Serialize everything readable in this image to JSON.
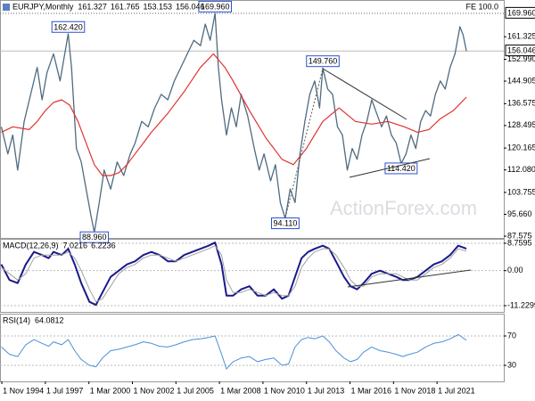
{
  "chart_data": [
    {
      "type": "line",
      "title": "EURJPY,Monthly",
      "ohlc": [
        161.327,
        161.765,
        153.153,
        156.046
      ],
      "xlim": [
        1994.72,
        2025.59
      ],
      "ylim": [
        86.93,
        174.9
      ],
      "yticks": [
        161.325,
        {
          "value": 152.99,
          "label": "152.990"
        },
        144.905,
        136.575,
        128.495,
        120.165,
        {
          "value": 112.08,
          "label": "112.080"
        },
        103.755,
        {
          "value": 95.66,
          "label": "95.660"
        },
        87.575
      ],
      "last_price": 156.046,
      "fe_label": "FE 100.0",
      "fe_level": {
        "value": 169.96,
        "label": "169.960"
      },
      "watermark": "ActionForex.com",
      "annotations": [
        {
          "x": 1998.9,
          "value": 162.42,
          "label": "162.420"
        },
        {
          "x": 2000.5,
          "value": 88.96,
          "label": "88.960"
        },
        {
          "x": 2007.9,
          "value": 169.96,
          "label": "169.960"
        },
        {
          "x": 2012.2,
          "value": 94.11,
          "label": "94.110"
        },
        {
          "x": 2014.5,
          "value": 149.76,
          "label": "149.760"
        },
        {
          "x": 2019.3,
          "value": 114.42,
          "label": "114.420"
        }
      ],
      "series": [
        {
          "color": "#4f6b80",
          "x": [
            1994.8,
            1995.2,
            1995.5,
            1995.8,
            1996.2,
            1996.6,
            1997.0,
            1997.3,
            1997.6,
            1998.0,
            1998.4,
            1998.9,
            1999.1,
            1999.4,
            1999.7,
            2000.0,
            2000.3,
            2000.5,
            2000.8,
            2001.1,
            2001.5,
            2001.9,
            2002.3,
            2002.7,
            2003.0,
            2003.4,
            2003.8,
            2004.2,
            2004.6,
            2005.0,
            2005.4,
            2005.8,
            2006.2,
            2006.6,
            2007.0,
            2007.3,
            2007.6,
            2007.9,
            2008.1,
            2008.3,
            2008.6,
            2008.9,
            2009.2,
            2009.5,
            2009.9,
            2010.3,
            2010.6,
            2010.9,
            2011.3,
            2011.6,
            2011.9,
            2012.2,
            2012.5,
            2012.8,
            2013.1,
            2013.4,
            2013.7,
            2014.0,
            2014.3,
            2014.5,
            2014.8,
            2015.1,
            2015.4,
            2015.7,
            2016.0,
            2016.3,
            2016.6,
            2016.9,
            2017.2,
            2017.5,
            2017.8,
            2018.1,
            2018.4,
            2018.7,
            2019.0,
            2019.3,
            2019.6,
            2019.9,
            2020.2,
            2020.5,
            2020.8,
            2021.1,
            2021.4,
            2021.7,
            2022.0,
            2022.3,
            2022.6,
            2022.9,
            2023.1,
            2023.3
          ],
          "values": [
            128,
            118,
            125,
            112,
            130,
            140,
            150,
            138,
            148,
            155,
            145,
            162.42,
            150,
            120,
            115,
            105,
            95,
            88.96,
            100,
            112,
            105,
            115,
            110,
            118,
            122,
            130,
            128,
            135,
            140,
            138,
            145,
            150,
            155,
            160,
            158,
            166,
            160,
            169.96,
            150,
            138,
            125,
            135,
            128,
            140,
            132,
            120,
            112,
            118,
            108,
            114,
            100,
            94.11,
            105,
            100,
            118,
            130,
            140,
            145,
            135,
            149.76,
            142,
            140,
            128,
            125,
            112,
            120,
            116,
            125,
            130,
            138,
            133,
            128,
            132,
            125,
            122,
            114.42,
            118,
            125,
            120,
            130,
            134,
            132,
            140,
            145,
            142,
            150,
            155,
            165,
            162,
            156
          ]
        },
        {
          "color": "#e0332f",
          "x": [
            1994.8,
            1995.5,
            1996.5,
            1997.0,
            1997.5,
            1998.0,
            1998.5,
            1999.0,
            1999.5,
            2000.0,
            2000.5,
            2001.0,
            2001.5,
            2002.0,
            2002.5,
            2003.0,
            2003.5,
            2004.0,
            2005.0,
            2006.0,
            2007.0,
            2007.8,
            2008.5,
            2009.0,
            2010.0,
            2011.0,
            2012.0,
            2012.7,
            2013.5,
            2014.5,
            2015.5,
            2016.5,
            2017.5,
            2018.5,
            2019.5,
            2020.3,
            2021.0,
            2021.7,
            2022.5,
            2023.3
          ],
          "values": [
            126,
            128,
            127,
            130,
            134,
            137,
            138,
            136,
            130,
            122,
            114,
            110,
            110,
            111,
            114,
            118,
            122,
            126,
            133,
            141,
            150,
            155,
            150,
            145,
            134,
            124,
            116,
            114,
            120,
            130,
            135,
            130,
            129,
            130,
            128,
            126,
            127,
            131,
            134,
            139
          ]
        }
      ]
    },
    {
      "type": "line",
      "title": "MACD(12,26,9)",
      "readout": [
        7.0216,
        6.2236
      ],
      "xlim": [
        1994.72,
        2025.59
      ],
      "ylim": [
        -13.23,
        10.19
      ],
      "yticks": [
        8.7595,
        {
          "value": 0,
          "label": "0.00"
        },
        -11.2299
      ],
      "series": [
        {
          "color": "#1a1a8c",
          "width": 2,
          "x": [
            1994.8,
            1995.3,
            1995.8,
            1996.3,
            1996.8,
            1997.3,
            1997.7,
            1998.0,
            1998.5,
            1998.9,
            1999.3,
            1999.7,
            2000.2,
            2000.6,
            2001.0,
            2001.5,
            2002.0,
            2002.5,
            2003.0,
            2003.5,
            2004.0,
            2004.5,
            2005.0,
            2005.5,
            2006.0,
            2006.5,
            2007.0,
            2007.5,
            2007.9,
            2008.3,
            2008.6,
            2009.0,
            2009.5,
            2010.0,
            2010.5,
            2011.0,
            2011.5,
            2012.0,
            2012.4,
            2012.8,
            2013.2,
            2013.6,
            2014.0,
            2014.5,
            2014.9,
            2015.3,
            2015.8,
            2016.2,
            2016.6,
            2017.0,
            2017.5,
            2018.0,
            2018.5,
            2019.0,
            2019.4,
            2019.8,
            2020.3,
            2020.8,
            2021.3,
            2021.8,
            2022.3,
            2022.8,
            2023.3
          ],
          "values": [
            2,
            -3,
            -4,
            2,
            6,
            5,
            4,
            6,
            5,
            7,
            2,
            -4,
            -10,
            -11,
            -7,
            -2,
            0,
            2,
            3,
            5,
            6,
            5,
            3,
            3,
            5,
            6,
            7,
            8,
            9,
            2,
            -8,
            -8,
            -6,
            -5,
            -8,
            -8,
            -6,
            -9,
            -8,
            -2,
            4,
            6,
            7,
            8,
            7,
            3,
            -2,
            -5,
            -6,
            -4,
            -1,
            0,
            -1,
            -2,
            -3,
            -3,
            -2,
            0,
            2,
            3,
            5,
            8,
            7.02
          ]
        },
        {
          "color": "#a0a0a0",
          "width": 1,
          "x": [
            1994.8,
            1995.3,
            1995.8,
            1996.3,
            1996.8,
            1997.3,
            1997.7,
            1998.0,
            1998.5,
            1998.9,
            1999.3,
            1999.7,
            2000.2,
            2000.6,
            2001.0,
            2001.5,
            2002.0,
            2002.5,
            2003.0,
            2003.5,
            2004.0,
            2004.5,
            2005.0,
            2005.5,
            2006.0,
            2006.5,
            2007.0,
            2007.5,
            2007.9,
            2008.3,
            2008.6,
            2009.0,
            2009.5,
            2010.0,
            2010.5,
            2011.0,
            2011.5,
            2012.0,
            2012.4,
            2012.8,
            2013.2,
            2013.6,
            2014.0,
            2014.5,
            2014.9,
            2015.3,
            2015.8,
            2016.2,
            2016.6,
            2017.0,
            2017.5,
            2018.0,
            2018.5,
            2019.0,
            2019.4,
            2019.8,
            2020.3,
            2020.8,
            2021.3,
            2021.8,
            2022.3,
            2022.8,
            2023.3
          ],
          "values": [
            1,
            -1,
            -3,
            -1,
            4,
            5,
            5,
            5,
            5,
            6,
            4,
            0,
            -6,
            -10,
            -9,
            -5,
            -1,
            1,
            2,
            4,
            5,
            5,
            4,
            3,
            4,
            5,
            6,
            7,
            8,
            5,
            -3,
            -7,
            -7,
            -6,
            -7,
            -8,
            -7,
            -8,
            -8,
            -5,
            1,
            4,
            6,
            7,
            7,
            5,
            1,
            -3,
            -5,
            -5,
            -2,
            -1,
            -1,
            -1,
            -2,
            -3,
            -3,
            -1,
            1,
            2,
            4,
            7,
            6.22
          ]
        }
      ]
    },
    {
      "type": "line",
      "title": "RSI(14)",
      "readout": [
        64.0812
      ],
      "xlim": [
        1994.72,
        2025.59
      ],
      "ylim": [
        8.2,
        100.3
      ],
      "yticks": [
        70,
        30
      ],
      "xticks": [
        {
          "value": 1994.833,
          "label": "1 Nov 1994"
        },
        {
          "value": 1997.5,
          "label": "1 Jul 1997"
        },
        {
          "value": 2000.167,
          "label": "1 Mar 2000"
        },
        {
          "value": 2002.833,
          "label": "1 Nov 2002"
        },
        {
          "value": 2005.5,
          "label": "1 Jul 2005"
        },
        {
          "value": 2008.167,
          "label": "1 Mar 2008"
        },
        {
          "value": 2010.833,
          "label": "1 Nov 2010"
        },
        {
          "value": 2013.5,
          "label": "1 Jul 2013"
        },
        {
          "value": 2016.167,
          "label": "1 Mar 2016"
        },
        {
          "value": 2018.833,
          "label": "1 Nov 2018"
        },
        {
          "value": 2021.5,
          "label": "1 Jul 2021"
        }
      ],
      "series": [
        {
          "color": "#4a90d9",
          "width": 1,
          "x": [
            1994.8,
            1995.3,
            1995.8,
            1996.3,
            1996.8,
            1997.3,
            1997.7,
            1998.0,
            1998.5,
            1998.9,
            1999.3,
            1999.7,
            2000.2,
            2000.6,
            2001.0,
            2001.5,
            2002.0,
            2002.5,
            2003.0,
            2003.5,
            2004.0,
            2004.5,
            2005.0,
            2005.5,
            2006.0,
            2006.5,
            2007.0,
            2007.5,
            2007.9,
            2008.3,
            2008.6,
            2009.0,
            2009.5,
            2010.0,
            2010.5,
            2011.0,
            2011.5,
            2012.0,
            2012.4,
            2012.8,
            2013.2,
            2013.6,
            2014.0,
            2014.5,
            2014.9,
            2015.3,
            2015.8,
            2016.2,
            2016.6,
            2017.0,
            2017.5,
            2018.0,
            2018.5,
            2019.0,
            2019.4,
            2019.8,
            2020.3,
            2020.8,
            2021.3,
            2021.8,
            2022.3,
            2022.8,
            2023.3
          ],
          "values": [
            55,
            45,
            42,
            58,
            65,
            60,
            56,
            62,
            58,
            65,
            50,
            38,
            30,
            28,
            40,
            50,
            52,
            55,
            58,
            62,
            60,
            56,
            55,
            58,
            62,
            65,
            66,
            68,
            70,
            45,
            25,
            35,
            40,
            42,
            35,
            38,
            40,
            30,
            32,
            55,
            65,
            68,
            66,
            70,
            62,
            50,
            40,
            35,
            38,
            48,
            55,
            50,
            48,
            45,
            42,
            45,
            48,
            55,
            60,
            62,
            66,
            72,
            64.08
          ]
        }
      ]
    }
  ]
}
